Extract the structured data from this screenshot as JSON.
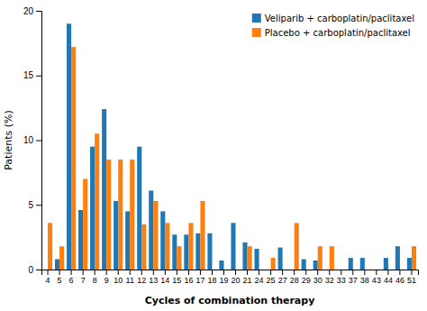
{
  "chart_data": {
    "type": "bar",
    "xlabel": "Cycles of combination therapy",
    "ylabel": "Patients (%)",
    "categories": [
      "4",
      "5",
      "6",
      "7",
      "8",
      "9",
      "10",
      "11",
      "12",
      "13",
      "14",
      "15",
      "16",
      "17",
      "18",
      "19",
      "20",
      "21",
      "24",
      "25",
      "27",
      "28",
      "29",
      "30",
      "32",
      "33",
      "37",
      "38",
      "43",
      "44",
      "46",
      "51"
    ],
    "series": [
      {
        "name": "Veliparib + carboplatin/paclitaxel",
        "values": [
          0.0,
          0.8,
          19.0,
          4.6,
          9.5,
          12.4,
          5.3,
          4.5,
          9.5,
          6.1,
          4.5,
          2.7,
          2.7,
          2.8,
          2.8,
          0.7,
          3.6,
          2.1,
          1.6,
          0.0,
          1.7,
          0.0,
          0.8,
          0.7,
          0.0,
          0.0,
          0.9,
          0.9,
          0.0,
          0.9,
          1.8,
          0.9
        ]
      },
      {
        "name": "Placebo + carboplatin/paclitaxel",
        "values": [
          3.6,
          1.8,
          17.2,
          7.0,
          10.5,
          8.5,
          8.5,
          8.5,
          3.5,
          5.3,
          3.6,
          1.8,
          3.6,
          5.3,
          0.0,
          0.0,
          0.0,
          1.8,
          0.0,
          0.9,
          0.0,
          3.6,
          0.0,
          1.8,
          1.8,
          0.0,
          0.0,
          0.0,
          0.0,
          0.0,
          0.0,
          1.8
        ]
      }
    ],
    "ylim": [
      0,
      20
    ],
    "yticks": [
      0,
      5,
      10,
      15,
      20
    ],
    "grid": false,
    "legend": "upper right"
  }
}
